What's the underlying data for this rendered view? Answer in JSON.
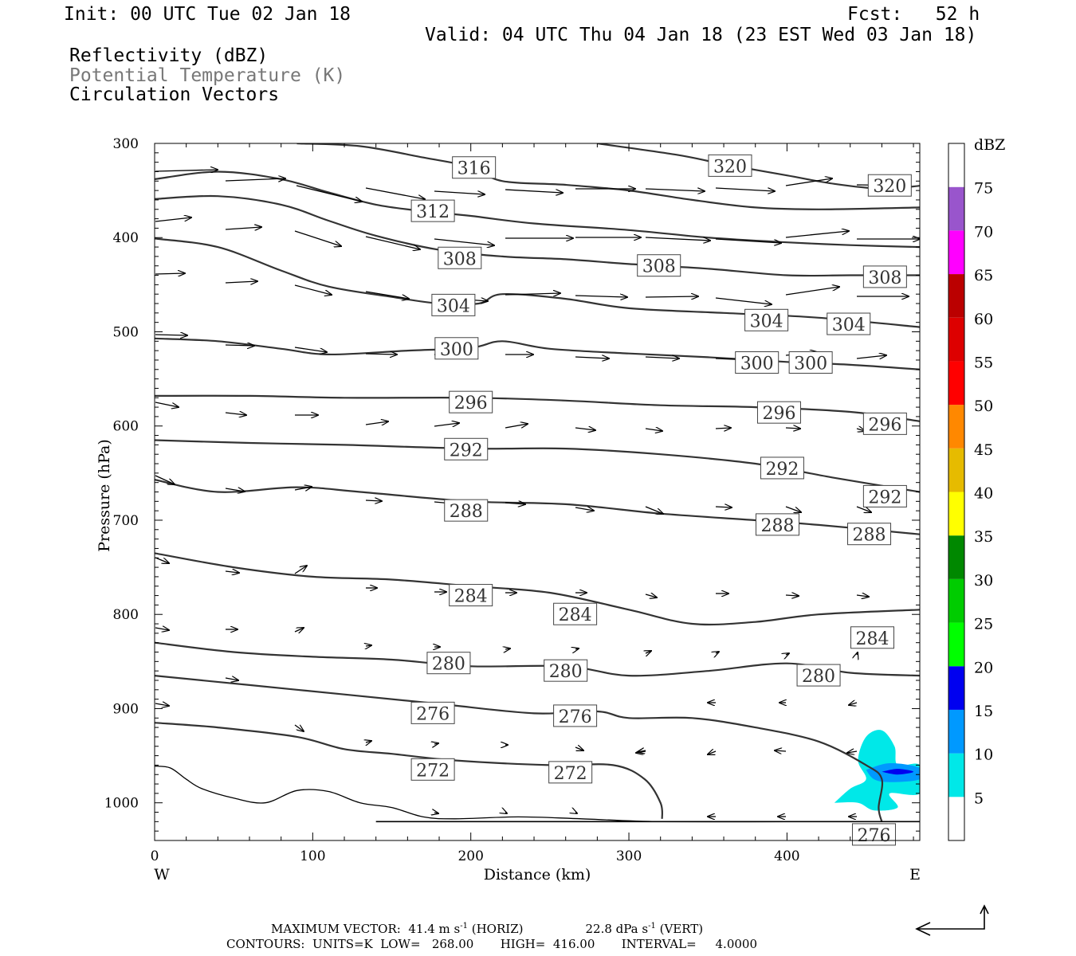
{
  "header": {
    "init": "Init: 00 UTC Tue 02 Jan 18",
    "fcst": "Fcst:   52 h",
    "valid": "Valid: 04 UTC Thu 04 Jan 18 (23 EST Wed 03 Jan 18)",
    "field1": "Reflectivity (dBZ)",
    "field2": "Potential Temperature (K)",
    "field3": "Circulation Vectors"
  },
  "footer": {
    "max_vector": "MAXIMUM VECTOR:  41.4 m s",
    "max_vector_unit_exp": "-1",
    "max_vector_horiz": " (HORIZ)",
    "max_vector_vert": "22.8 dPa s",
    "max_vector_vert_exp": "-1",
    "max_vector_vert_tag": " (VERT)",
    "contours": "CONTOURS:  UNITS=K  LOW=   268.00       HIGH=  416.00       INTERVAL=     4.0000"
  },
  "colorbar": {
    "title": "dBZ",
    "levels": [
      5,
      10,
      15,
      20,
      25,
      30,
      35,
      40,
      45,
      50,
      55,
      60,
      65,
      70,
      75
    ],
    "colors": [
      "#00e8e8",
      "#0099ff",
      "#0000f0",
      "#00ff00",
      "#00cc00",
      "#008800",
      "#ffff00",
      "#e6bb00",
      "#ff8800",
      "#ff0000",
      "#dd0000",
      "#bb0000",
      "#ff00ff",
      "#9955cc",
      "#ffffff"
    ]
  },
  "chart_data": {
    "type": "contour",
    "title": "",
    "xlabel": "Distance (km)",
    "ylabel": "Pressure (hPa)",
    "x_ticks": [
      0,
      100,
      200,
      300,
      400
    ],
    "y_ticks": [
      300,
      400,
      500,
      600,
      700,
      800,
      900,
      1000
    ],
    "xlim": [
      0,
      484
    ],
    "ylim": [
      1040,
      300
    ],
    "x_end_labels": {
      "left": "W",
      "right": "E"
    },
    "theta_contours": [
      {
        "value": 272,
        "labels": [
          [
            176,
            965
          ],
          [
            263,
            968
          ]
        ],
        "points": [
          [
            0,
            915
          ],
          [
            40,
            920
          ],
          [
            90,
            930
          ],
          [
            120,
            943
          ],
          [
            150,
            948
          ],
          [
            190,
            955
          ],
          [
            250,
            960
          ],
          [
            290,
            960
          ],
          [
            310,
            975
          ],
          [
            320,
            1000
          ],
          [
            321,
            1017
          ]
        ]
      },
      {
        "value": 276,
        "labels": [
          [
            176,
            905
          ],
          [
            266,
            908
          ],
          [
            455,
            1034
          ]
        ],
        "points": [
          [
            0,
            865
          ],
          [
            60,
            875
          ],
          [
            120,
            885
          ],
          [
            180,
            895
          ],
          [
            240,
            905
          ],
          [
            280,
            903
          ],
          [
            300,
            910
          ],
          [
            340,
            910
          ],
          [
            380,
            920
          ],
          [
            420,
            935
          ],
          [
            450,
            960
          ],
          [
            460,
            975
          ],
          [
            458,
            1005
          ],
          [
            460,
            1020
          ]
        ]
      },
      {
        "value": 280,
        "labels": [
          [
            186,
            852
          ],
          [
            260,
            860
          ],
          [
            420,
            865
          ]
        ],
        "points": [
          [
            0,
            830
          ],
          [
            50,
            840
          ],
          [
            100,
            845
          ],
          [
            150,
            848
          ],
          [
            200,
            855
          ],
          [
            260,
            855
          ],
          [
            300,
            865
          ],
          [
            350,
            860
          ],
          [
            400,
            852
          ],
          [
            440,
            862
          ],
          [
            484,
            865
          ]
        ]
      },
      {
        "value": 284,
        "labels": [
          [
            200,
            780
          ],
          [
            266,
            800
          ],
          [
            454,
            825
          ]
        ],
        "points": [
          [
            0,
            735
          ],
          [
            50,
            750
          ],
          [
            100,
            760
          ],
          [
            150,
            763
          ],
          [
            200,
            770
          ],
          [
            250,
            777
          ],
          [
            300,
            795
          ],
          [
            340,
            810
          ],
          [
            380,
            808
          ],
          [
            420,
            800
          ],
          [
            484,
            795
          ]
        ]
      },
      {
        "value": 288,
        "labels": [
          [
            197,
            690
          ],
          [
            394,
            705
          ],
          [
            452,
            715
          ]
        ],
        "points": [
          [
            0,
            657
          ],
          [
            40,
            670
          ],
          [
            90,
            665
          ],
          [
            130,
            670
          ],
          [
            200,
            680
          ],
          [
            260,
            683
          ],
          [
            320,
            693
          ],
          [
            380,
            700
          ],
          [
            420,
            705
          ],
          [
            484,
            715
          ]
        ]
      },
      {
        "value": 292,
        "labels": [
          [
            197,
            625
          ],
          [
            397,
            645
          ],
          [
            462,
            675
          ]
        ],
        "points": [
          [
            0,
            615
          ],
          [
            60,
            618
          ],
          [
            120,
            620
          ],
          [
            200,
            624
          ],
          [
            260,
            624
          ],
          [
            320,
            630
          ],
          [
            380,
            640
          ],
          [
            430,
            655
          ],
          [
            484,
            670
          ]
        ]
      },
      {
        "value": 296,
        "labels": [
          [
            200,
            575
          ],
          [
            395,
            586
          ],
          [
            462,
            598
          ]
        ],
        "points": [
          [
            0,
            568
          ],
          [
            60,
            568
          ],
          [
            120,
            570
          ],
          [
            200,
            570
          ],
          [
            260,
            573
          ],
          [
            320,
            578
          ],
          [
            380,
            580
          ],
          [
            440,
            585
          ],
          [
            484,
            595
          ]
        ]
      },
      {
        "value": 300,
        "labels": [
          [
            191,
            518
          ],
          [
            381,
            533
          ],
          [
            415,
            533
          ]
        ],
        "points": [
          [
            0,
            507
          ],
          [
            40,
            510
          ],
          [
            80,
            518
          ],
          [
            110,
            524
          ],
          [
            160,
            520
          ],
          [
            200,
            517
          ],
          [
            220,
            510
          ],
          [
            250,
            518
          ],
          [
            300,
            523
          ],
          [
            350,
            527
          ],
          [
            400,
            532
          ],
          [
            440,
            535
          ],
          [
            484,
            540
          ]
        ]
      },
      {
        "value": 304,
        "labels": [
          [
            189,
            472
          ],
          [
            387,
            488
          ],
          [
            439,
            492
          ]
        ],
        "points": [
          [
            0,
            401
          ],
          [
            40,
            410
          ],
          [
            80,
            435
          ],
          [
            110,
            452
          ],
          [
            150,
            463
          ],
          [
            180,
            470
          ],
          [
            205,
            470
          ],
          [
            220,
            460
          ],
          [
            260,
            465
          ],
          [
            300,
            475
          ],
          [
            360,
            480
          ],
          [
            420,
            485
          ],
          [
            484,
            495
          ]
        ]
      },
      {
        "value": 308,
        "labels": [
          [
            193,
            422
          ],
          [
            319,
            430
          ],
          [
            462,
            442
          ]
        ],
        "points": [
          [
            0,
            359
          ],
          [
            40,
            356
          ],
          [
            80,
            365
          ],
          [
            110,
            382
          ],
          [
            140,
            398
          ],
          [
            180,
            413
          ],
          [
            220,
            420
          ],
          [
            260,
            423
          ],
          [
            300,
            428
          ],
          [
            350,
            433
          ],
          [
            400,
            440
          ],
          [
            440,
            440
          ],
          [
            484,
            440
          ]
        ]
      },
      {
        "value": 312,
        "labels": [
          [
            176,
            372
          ]
        ],
        "points": [
          [
            0,
            338
          ],
          [
            40,
            330
          ],
          [
            80,
            338
          ],
          [
            110,
            352
          ],
          [
            140,
            365
          ],
          [
            170,
            372
          ],
          [
            200,
            377
          ],
          [
            240,
            385
          ],
          [
            300,
            392
          ],
          [
            350,
            400
          ],
          [
            400,
            405
          ],
          [
            440,
            408
          ],
          [
            484,
            410
          ]
        ]
      },
      {
        "value": 316,
        "labels": [
          [
            202,
            326
          ]
        ],
        "points": [
          [
            90,
            300
          ],
          [
            130,
            303
          ],
          [
            170,
            315
          ],
          [
            200,
            325
          ],
          [
            220,
            340
          ],
          [
            260,
            344
          ],
          [
            300,
            350
          ],
          [
            340,
            360
          ],
          [
            380,
            368
          ],
          [
            420,
            370
          ],
          [
            484,
            368
          ]
        ]
      },
      {
        "value": 320,
        "labels": [
          [
            364,
            324
          ],
          [
            465,
            345
          ]
        ],
        "points": [
          [
            280,
            300
          ],
          [
            330,
            312
          ],
          [
            360,
            322
          ],
          [
            400,
            334
          ],
          [
            430,
            343
          ],
          [
            460,
            348
          ],
          [
            484,
            345
          ]
        ]
      }
    ],
    "terrain": [
      [
        0,
        961
      ],
      [
        10,
        963
      ],
      [
        20,
        975
      ],
      [
        30,
        985
      ],
      [
        50,
        995
      ],
      [
        70,
        1000
      ],
      [
        90,
        987
      ],
      [
        110,
        988
      ],
      [
        130,
        1000
      ],
      [
        150,
        1005
      ],
      [
        170,
        1015
      ],
      [
        190,
        1017
      ],
      [
        230,
        1015
      ],
      [
        270,
        1017
      ],
      [
        320,
        1020
      ],
      [
        400,
        1020
      ],
      [
        484,
        1020
      ]
    ],
    "reflectivity_cells": [
      {
        "dbz": 5,
        "points": [
          [
            430,
            1000
          ],
          [
            440,
            985
          ],
          [
            450,
            975
          ],
          [
            445,
            955
          ],
          [
            450,
            930
          ],
          [
            460,
            923
          ],
          [
            468,
            940
          ],
          [
            470,
            960
          ],
          [
            484,
            960
          ],
          [
            484,
            990
          ],
          [
            465,
            990
          ],
          [
            470,
            1005
          ],
          [
            455,
            1008
          ],
          [
            445,
            1000
          ]
        ]
      },
      {
        "dbz": 10,
        "points": [
          [
            450,
            965
          ],
          [
            465,
            958
          ],
          [
            484,
            963
          ],
          [
            484,
            975
          ],
          [
            465,
            978
          ],
          [
            455,
            975
          ]
        ]
      },
      {
        "dbz": 15,
        "points": [
          [
            460,
            967
          ],
          [
            470,
            964
          ],
          [
            480,
            967
          ],
          [
            470,
            970
          ]
        ]
      }
    ]
  }
}
